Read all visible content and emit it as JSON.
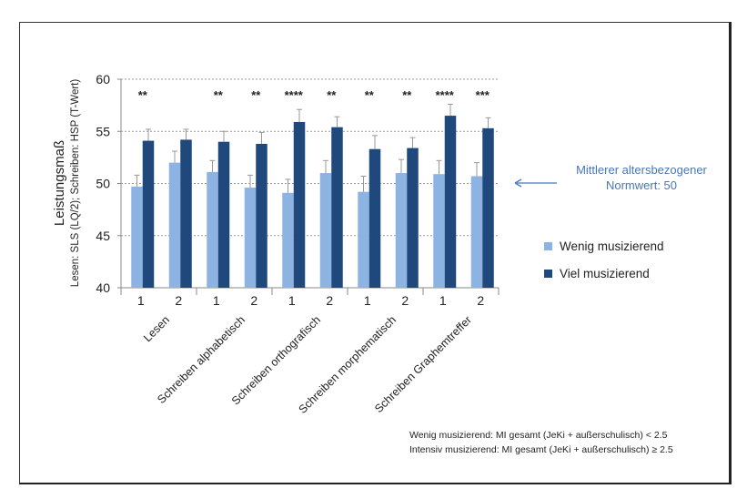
{
  "chart_data": {
    "type": "bar",
    "ylabel": "Leistungsmaß",
    "ylabel2": "Lesen: SLS (LQ/2); Schreiben: HSP (T-Wert)",
    "ylim": [
      40,
      60
    ],
    "yticks": [
      40,
      45,
      50,
      55,
      60
    ],
    "grid": true,
    "groups": [
      "Lesen",
      "Schreiben alphabetisch",
      "Schreiben orthografisch",
      "Schreiben morphematisch",
      "Schreiben Graphemtreffer"
    ],
    "subcategories": [
      "1",
      "2",
      "1",
      "2",
      "1",
      "2",
      "1",
      "2",
      "1",
      "2"
    ],
    "series": [
      {
        "name": "Wenig musizierend",
        "color": "#8db3e2",
        "values": [
          49.7,
          52.0,
          51.1,
          49.6,
          49.1,
          51.0,
          49.2,
          51.0,
          50.9,
          50.7
        ],
        "error_upper": [
          50.8,
          53.1,
          52.2,
          50.8,
          50.4,
          52.2,
          50.7,
          52.3,
          52.2,
          52.0
        ]
      },
      {
        "name": "Viel musizierend",
        "color": "#1f497d",
        "values": [
          54.1,
          54.2,
          54.0,
          53.8,
          55.9,
          55.4,
          53.3,
          53.4,
          56.5,
          55.3
        ],
        "error_upper": [
          55.2,
          55.2,
          55.0,
          54.9,
          57.1,
          56.4,
          54.6,
          54.4,
          57.6,
          56.3
        ]
      }
    ],
    "significance": [
      "**",
      "",
      "**",
      "**",
      "****",
      "**",
      "**",
      "**",
      "****",
      "***"
    ],
    "legend_position": "right",
    "annotation": {
      "line1": "Mittlerer altersbezogener",
      "line2": "Normwert: 50",
      "color": "#4a76b8"
    }
  },
  "notes": [
    "Wenig musizierend: MI gesamt (JeKi + außerschulisch) < 2.5",
    "Intensiv musizierend:  MI  gesamt (JeKi + außerschulisch) ≥ 2.5"
  ]
}
